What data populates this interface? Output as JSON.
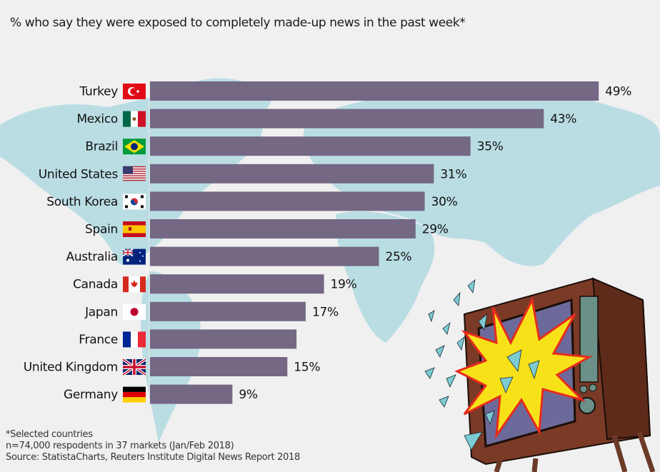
{
  "chart_data": {
    "type": "bar",
    "orientation": "horizontal",
    "title": "% who say they were exposed to completely made-up news in the past week*",
    "xlabel": "",
    "ylabel": "",
    "xlim": [
      0,
      55
    ],
    "grid": false,
    "categories": [
      "Turkey",
      "Mexico",
      "Brazil",
      "United States",
      "South Korea",
      "Spain",
      "Australia",
      "Canada",
      "Japan",
      "France",
      "United Kingdom",
      "Germany"
    ],
    "values": [
      49,
      43,
      35,
      31,
      30,
      29,
      25,
      19,
      17,
      16,
      15,
      9
    ],
    "labels": [
      "49%",
      "43%",
      "35%",
      "31%",
      "30%",
      "29%",
      "25%",
      "19%",
      "17%",
      "",
      "15%",
      "9%"
    ],
    "flags": [
      "turkey-flag",
      "mexico-flag",
      "brazil-flag",
      "us-flag",
      "south-korea-flag",
      "spain-flag",
      "australia-flag",
      "canada-flag",
      "japan-flag",
      "france-flag",
      "uk-flag",
      "germany-flag"
    ],
    "bar_color": "#746884"
  },
  "notes": {
    "line1": "*Selected countries",
    "line2": "n=74,000 respodents in 37 markets (Jan/Feb 2018)",
    "line3": "Source: StatistaCharts, Reuters Institute Digital News Report 2018"
  },
  "colors": {
    "background": "#f0f0f0",
    "map": "#b9dde3",
    "bar": "#746884"
  }
}
